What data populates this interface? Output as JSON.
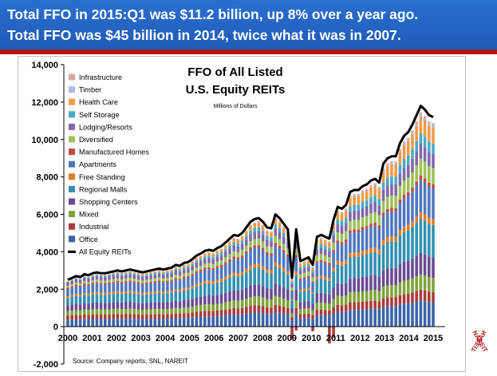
{
  "banner": {
    "line1": "Total FFO in 2015:Q1 was $11.2 billion, up 8% over a year ago.",
    "line2": "Total FFO was $45 billion in 2014, twice what it was in 2007."
  },
  "logo": {
    "text": "NAREIT"
  },
  "chart_data": {
    "type": "bar",
    "title": "FFO of All Listed",
    "title2": "U.S. Equity REITs",
    "subtitle": "Millions of Dollars",
    "source": "Source: Company reports, SNL, NAREIT",
    "ylim": [
      -2000,
      14000
    ],
    "yticks": [
      "-2,000",
      "0",
      "2,000",
      "4,000",
      "6,000",
      "8,000",
      "10,000",
      "12,000",
      "14,000"
    ],
    "xticks": [
      "2000",
      "2001",
      "2002",
      "2003",
      "2004",
      "2005",
      "2006",
      "2007",
      "2008",
      "2009",
      "2010",
      "2011",
      "2012",
      "2013",
      "2014",
      "2015"
    ],
    "grid": false,
    "legend_position": "top-left",
    "stacked_series": [
      {
        "name": "Office",
        "color": "#3b64a6"
      },
      {
        "name": "Industrial",
        "color": "#a83c3c"
      },
      {
        "name": "Mixed",
        "color": "#7fa33a"
      },
      {
        "name": "Shopping Centers",
        "color": "#6a4c93"
      },
      {
        "name": "Regional Malls",
        "color": "#3390b0"
      },
      {
        "name": "Free Standing",
        "color": "#e07b2a"
      },
      {
        "name": "Apartments",
        "color": "#5078c0"
      },
      {
        "name": "Manufactured Homes",
        "color": "#c04a48"
      },
      {
        "name": "Diversified",
        "color": "#9dc05a"
      },
      {
        "name": "Lodging/Resorts",
        "color": "#8068a8"
      },
      {
        "name": "Self Storage",
        "color": "#48aac8"
      },
      {
        "name": "Health Care",
        "color": "#f29a4a"
      },
      {
        "name": "Timber",
        "color": "#a9bde0"
      },
      {
        "name": "Infrastructure",
        "color": "#d8a6a6"
      }
    ],
    "line_series": {
      "name": "All Equity REITs",
      "color": "#000000",
      "values": [
        2500,
        2600,
        2700,
        2650,
        2800,
        2750,
        2850,
        2900,
        2850,
        2850,
        2900,
        2950,
        3000,
        2950,
        3000,
        3050,
        3000,
        2950,
        2900,
        2950,
        3000,
        3050,
        3100,
        3050,
        3100,
        3150,
        3300,
        3250,
        3400,
        3450,
        3600,
        3800,
        3900,
        4050,
        4100,
        4050,
        4200,
        4300,
        4500,
        4700,
        4900,
        4850,
        5000,
        5300,
        5600,
        5750,
        5800,
        5600,
        5300,
        5250,
        6000,
        5800,
        5500,
        5200,
        2600,
        5200,
        3500,
        3600,
        3700,
        3300,
        4800,
        4900,
        4800,
        4700,
        5700,
        6400,
        6300,
        6500,
        7200,
        7300,
        7300,
        7500,
        7600,
        7800,
        7900,
        7700,
        8700,
        9000,
        9100,
        9100,
        9800,
        10200,
        10400,
        10800,
        11300,
        11800,
        11600,
        11300,
        11200
      ]
    }
  }
}
